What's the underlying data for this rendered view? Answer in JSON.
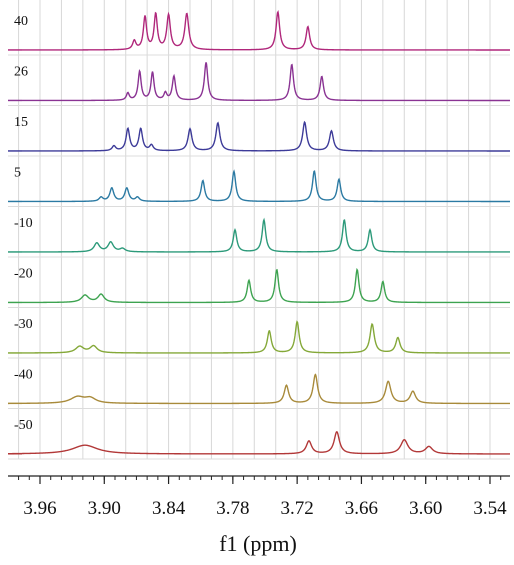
{
  "chart_data": {
    "type": "line",
    "xlabel": "f1 (ppm)",
    "xlim": [
      3.96,
      3.54
    ],
    "x_ticks": [
      "3.96",
      "3.90",
      "3.84",
      "3.78",
      "3.72",
      "3.66",
      "3.60",
      "3.54"
    ],
    "grid": true,
    "series": [
      {
        "name": "40",
        "color": "#b0277b",
        "peaks": [
          {
            "x": 3.872,
            "h": 0.22,
            "w": 0.0018
          },
          {
            "x": 3.862,
            "h": 0.82,
            "w": 0.0018
          },
          {
            "x": 3.852,
            "h": 0.88,
            "w": 0.0018
          },
          {
            "x": 3.84,
            "h": 0.86,
            "w": 0.002
          },
          {
            "x": 3.823,
            "h": 0.9,
            "w": 0.0022
          },
          {
            "x": 3.738,
            "h": 0.95,
            "w": 0.002
          },
          {
            "x": 3.71,
            "h": 0.58,
            "w": 0.002
          }
        ]
      },
      {
        "name": "26",
        "color": "#8a3393",
        "peaks": [
          {
            "x": 3.878,
            "h": 0.18,
            "w": 0.0016
          },
          {
            "x": 3.867,
            "h": 0.72,
            "w": 0.0017
          },
          {
            "x": 3.855,
            "h": 0.7,
            "w": 0.0017
          },
          {
            "x": 3.843,
            "h": 0.18,
            "w": 0.0016
          },
          {
            "x": 3.835,
            "h": 0.6,
            "w": 0.0018
          },
          {
            "x": 3.805,
            "h": 0.95,
            "w": 0.0019
          },
          {
            "x": 3.725,
            "h": 0.9,
            "w": 0.0019
          },
          {
            "x": 3.697,
            "h": 0.6,
            "w": 0.0019
          }
        ]
      },
      {
        "name": "15",
        "color": "#3d3b99",
        "peaks": [
          {
            "x": 3.891,
            "h": 0.12,
            "w": 0.002
          },
          {
            "x": 3.878,
            "h": 0.55,
            "w": 0.002
          },
          {
            "x": 3.866,
            "h": 0.55,
            "w": 0.002
          },
          {
            "x": 3.856,
            "h": 0.14,
            "w": 0.002
          },
          {
            "x": 3.82,
            "h": 0.55,
            "w": 0.0022
          },
          {
            "x": 3.794,
            "h": 0.7,
            "w": 0.0022
          },
          {
            "x": 3.713,
            "h": 0.72,
            "w": 0.0022
          },
          {
            "x": 3.688,
            "h": 0.5,
            "w": 0.0022
          }
        ]
      },
      {
        "name": "5",
        "color": "#2b7aa3",
        "peaks": [
          {
            "x": 3.903,
            "h": 0.1,
            "w": 0.0022
          },
          {
            "x": 3.893,
            "h": 0.33,
            "w": 0.0022
          },
          {
            "x": 3.879,
            "h": 0.33,
            "w": 0.0022
          },
          {
            "x": 3.869,
            "h": 0.1,
            "w": 0.0022
          },
          {
            "x": 3.808,
            "h": 0.52,
            "w": 0.002
          },
          {
            "x": 3.779,
            "h": 0.75,
            "w": 0.002
          },
          {
            "x": 3.704,
            "h": 0.76,
            "w": 0.002
          },
          {
            "x": 3.681,
            "h": 0.55,
            "w": 0.002
          }
        ]
      },
      {
        "name": "-10",
        "color": "#2c9a7a",
        "peaks": [
          {
            "x": 3.907,
            "h": 0.22,
            "w": 0.003
          },
          {
            "x": 3.894,
            "h": 0.24,
            "w": 0.003
          },
          {
            "x": 3.883,
            "h": 0.08,
            "w": 0.003
          },
          {
            "x": 3.778,
            "h": 0.55,
            "w": 0.002
          },
          {
            "x": 3.751,
            "h": 0.8,
            "w": 0.002
          },
          {
            "x": 3.676,
            "h": 0.8,
            "w": 0.002
          },
          {
            "x": 3.652,
            "h": 0.55,
            "w": 0.002
          }
        ]
      },
      {
        "name": "-20",
        "color": "#3da350",
        "peaks": [
          {
            "x": 3.918,
            "h": 0.18,
            "w": 0.004
          },
          {
            "x": 3.903,
            "h": 0.2,
            "w": 0.0035
          },
          {
            "x": 3.765,
            "h": 0.55,
            "w": 0.002
          },
          {
            "x": 3.739,
            "h": 0.82,
            "w": 0.002
          },
          {
            "x": 3.664,
            "h": 0.82,
            "w": 0.002
          },
          {
            "x": 3.64,
            "h": 0.52,
            "w": 0.002
          }
        ]
      },
      {
        "name": "-30",
        "color": "#84a838",
        "peaks": [
          {
            "x": 3.923,
            "h": 0.16,
            "w": 0.0045
          },
          {
            "x": 3.91,
            "h": 0.17,
            "w": 0.004
          },
          {
            "x": 3.746,
            "h": 0.55,
            "w": 0.0022
          },
          {
            "x": 3.72,
            "h": 0.78,
            "w": 0.0022
          },
          {
            "x": 3.65,
            "h": 0.72,
            "w": 0.0024
          },
          {
            "x": 3.626,
            "h": 0.38,
            "w": 0.0024
          }
        ]
      },
      {
        "name": "-40",
        "color": "#a88a3a",
        "peaks": [
          {
            "x": 3.925,
            "h": 0.16,
            "w": 0.008
          },
          {
            "x": 3.913,
            "h": 0.12,
            "w": 0.006
          },
          {
            "x": 3.73,
            "h": 0.45,
            "w": 0.0025
          },
          {
            "x": 3.703,
            "h": 0.72,
            "w": 0.0025
          },
          {
            "x": 3.635,
            "h": 0.55,
            "w": 0.003
          },
          {
            "x": 3.612,
            "h": 0.3,
            "w": 0.003
          }
        ]
      },
      {
        "name": "-50",
        "color": "#b23838",
        "peaks": [
          {
            "x": 3.918,
            "h": 0.22,
            "w": 0.014
          },
          {
            "x": 3.709,
            "h": 0.32,
            "w": 0.003
          },
          {
            "x": 3.683,
            "h": 0.55,
            "w": 0.003
          },
          {
            "x": 3.62,
            "h": 0.35,
            "w": 0.004
          },
          {
            "x": 3.597,
            "h": 0.18,
            "w": 0.004
          }
        ]
      }
    ]
  }
}
